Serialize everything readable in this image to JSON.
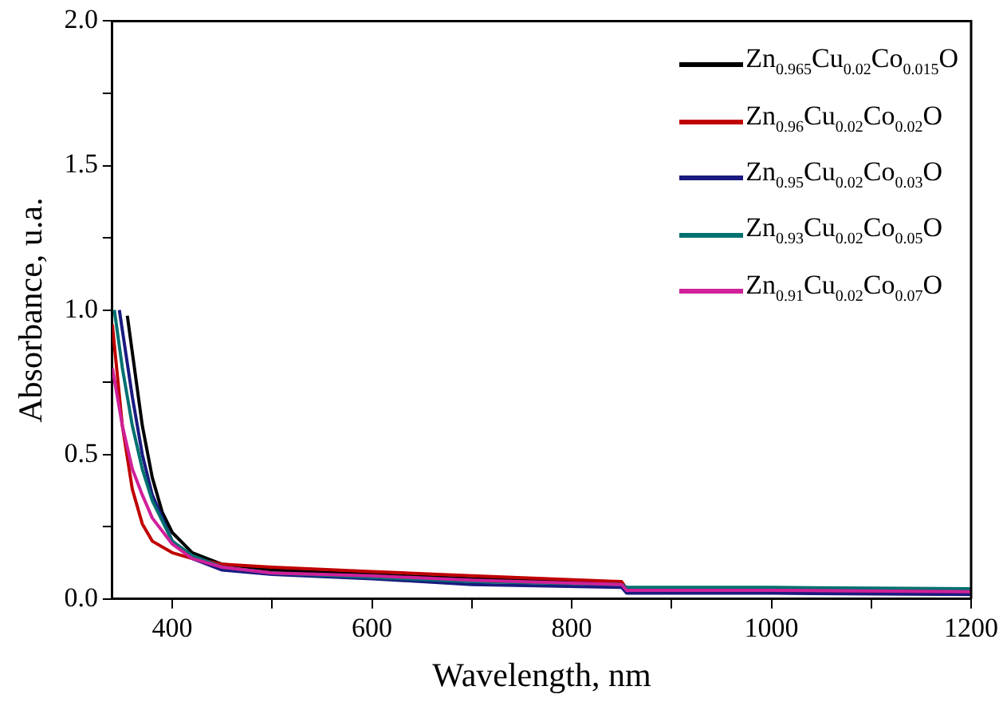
{
  "chart_data": {
    "type": "line",
    "xlabel": "Wavelength, nm",
    "ylabel": "Absorbance, u.a.",
    "xlim": [
      340,
      1200
    ],
    "ylim": [
      0,
      2
    ],
    "xticks": [
      400,
      {
        "value": 500,
        "label": null
      },
      600,
      {
        "value": 700,
        "label": null
      },
      800,
      {
        "value": 900,
        "label": null
      },
      1000,
      {
        "value": 1100,
        "label": null
      },
      1200
    ],
    "yticks": [
      {
        "value": 0,
        "label": "0.0"
      },
      {
        "value": 0.25,
        "label": null
      },
      0.5,
      {
        "value": 0.75,
        "label": null
      },
      {
        "value": 1,
        "label": "1.0"
      },
      {
        "value": 1.25,
        "label": null
      },
      1.5,
      {
        "value": 1.75,
        "label": null
      },
      {
        "value": 2,
        "label": "2.0"
      }
    ],
    "grid": false,
    "legend": "top right",
    "marker": "none",
    "line_style": "solid",
    "series": [
      {
        "name": "Zn$_{0.965}$Cu$_{0.02}$Co$_{0.015}$O",
        "color": "#000000",
        "x": [
          355,
          370,
          380,
          390,
          400,
          420,
          450,
          500,
          600,
          700,
          850,
          855,
          1000,
          1200
        ],
        "values": [
          0.98,
          0.6,
          0.42,
          0.3,
          0.23,
          0.16,
          0.12,
          0.1,
          0.085,
          0.07,
          0.055,
          0.03,
          0.03,
          0.025
        ]
      },
      {
        "name": "Zn$_{0.96}$Cu$_{0.02}$Co$_{0.02}$O",
        "color": "#c00000",
        "x": [
          340,
          350,
          360,
          370,
          380,
          400,
          420,
          450,
          500,
          600,
          700,
          850,
          855,
          1000,
          1200
        ],
        "values": [
          0.95,
          0.6,
          0.38,
          0.26,
          0.2,
          0.16,
          0.14,
          0.12,
          0.11,
          0.095,
          0.08,
          0.06,
          0.035,
          0.03,
          0.025
        ]
      },
      {
        "name": "Zn$_{0.95}$Cu$_{0.02}$Co$_{0.03}$O",
        "color": "#1a1a80",
        "x": [
          347,
          360,
          370,
          380,
          400,
          420,
          450,
          500,
          600,
          700,
          850,
          855,
          1000,
          1200
        ],
        "values": [
          1.0,
          0.7,
          0.5,
          0.36,
          0.2,
          0.14,
          0.1,
          0.085,
          0.07,
          0.05,
          0.04,
          0.02,
          0.02,
          0.015
        ]
      },
      {
        "name": "Zn$_{0.93}$Cu$_{0.02}$Co$_{0.05}$O",
        "color": "#007070",
        "x": [
          342,
          350,
          360,
          370,
          380,
          400,
          420,
          450,
          500,
          600,
          700,
          850,
          855,
          1000,
          1200
        ],
        "values": [
          1.0,
          0.8,
          0.6,
          0.45,
          0.34,
          0.2,
          0.15,
          0.11,
          0.09,
          0.075,
          0.06,
          0.05,
          0.04,
          0.04,
          0.035
        ]
      },
      {
        "name": "Zn$_{0.91}$Cu$_{0.02}$Co$_{0.07}$O",
        "color": "#d0209a",
        "x": [
          340,
          350,
          360,
          370,
          380,
          400,
          420,
          450,
          500,
          600,
          700,
          850,
          855,
          1000,
          1200
        ],
        "values": [
          0.8,
          0.6,
          0.45,
          0.36,
          0.28,
          0.19,
          0.14,
          0.11,
          0.09,
          0.08,
          0.065,
          0.05,
          0.03,
          0.03,
          0.025
        ]
      }
    ]
  }
}
